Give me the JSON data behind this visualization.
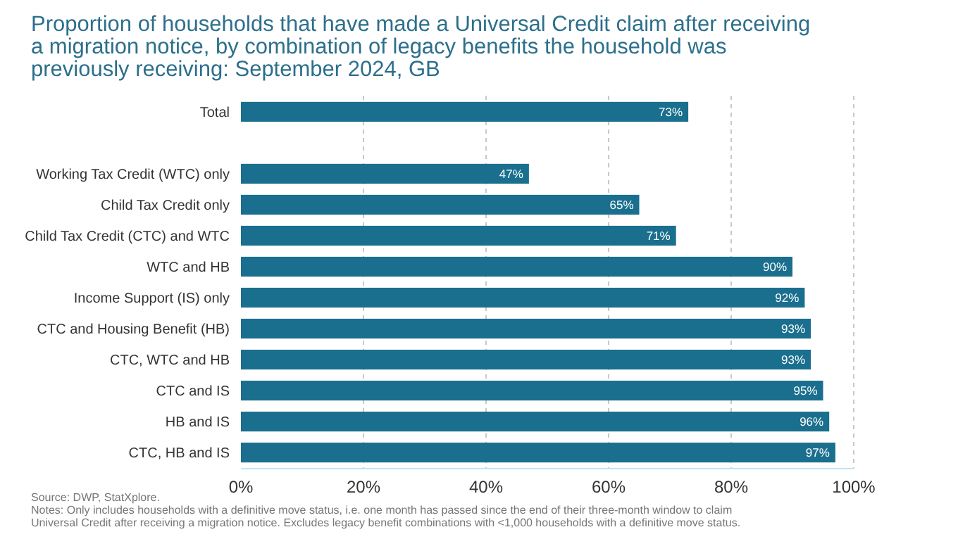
{
  "chart_data": {
    "type": "bar",
    "orientation": "horizontal",
    "title": "Proportion of households that have made a Universal Credit claim after receiving a migration notice, by combination of legacy benefits the household was previously receiving: September 2024, GB",
    "categories": [
      "Total",
      null,
      "Working Tax Credit (WTC) only",
      "Child Tax Credit only",
      "Child Tax Credit (CTC) and WTC",
      "WTC and HB",
      "Income Support (IS) only",
      "CTC and Housing Benefit (HB)",
      "CTC, WTC and HB",
      "CTC and IS",
      "HB and IS",
      "CTC, HB and IS"
    ],
    "values": [
      73,
      null,
      47,
      65,
      71,
      90,
      92,
      93,
      93,
      95,
      96,
      97
    ],
    "value_labels": [
      "73%",
      null,
      "47%",
      "65%",
      "71%",
      "90%",
      "92%",
      "93%",
      "93%",
      "95%",
      "96%",
      "97%"
    ],
    "color": "#1b6f8e",
    "xlim": [
      0,
      100
    ],
    "xticks": [
      {
        "value": 0,
        "label": "0%"
      },
      {
        "value": 20,
        "label": "20%"
      },
      {
        "value": 40,
        "label": "40%"
      },
      {
        "value": 60,
        "label": "60%"
      },
      {
        "value": 80,
        "label": "80%"
      },
      {
        "value": 100,
        "label": "100%"
      }
    ],
    "grid": "x",
    "annotations": [
      "Source: DWP, StatXplore.",
      "Notes:  Only includes households with a definitive move status, i.e. one month has passed since the end of their three-month window to claim Universal Credit after receiving a migration notice. Excludes legacy benefit combinations with <1,000 households with a definitive move status."
    ]
  }
}
